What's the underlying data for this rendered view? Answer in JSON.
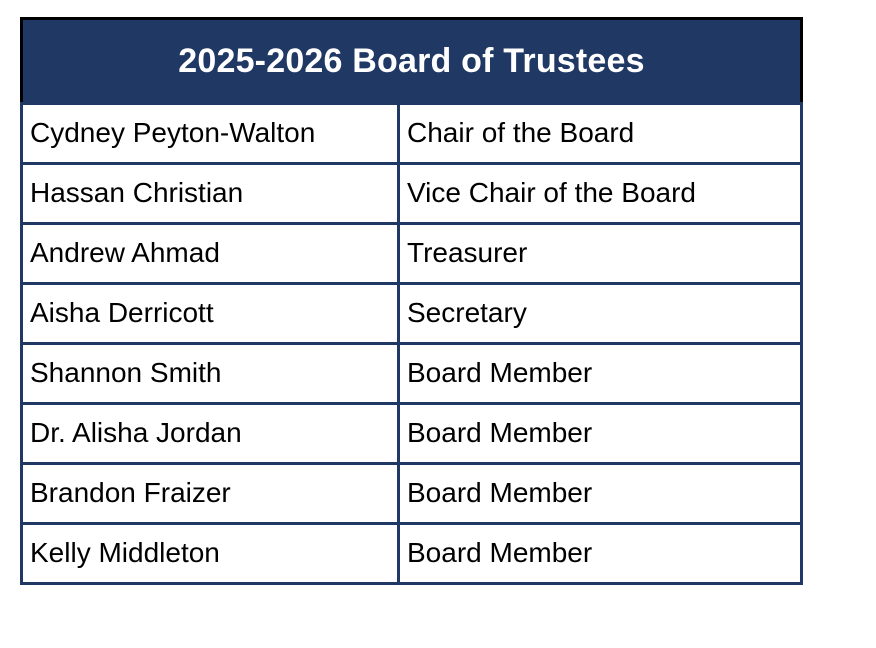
{
  "colors": {
    "header_background": "#1f3864",
    "header_text": "#ffffff",
    "header_outline": "#000000",
    "body_border": "#1f3864",
    "body_text": "#000000",
    "body_background": "#ffffff",
    "page_background": "#ffffff"
  },
  "table": {
    "title": "2025-2026 Board of Trustees",
    "rows": [
      {
        "name": "Cydney Peyton-Walton",
        "role": "Chair of the Board"
      },
      {
        "name": "Hassan Christian",
        "role": "Vice Chair of the Board"
      },
      {
        "name": "Andrew Ahmad",
        "role": "Treasurer"
      },
      {
        "name": "Aisha Derricott",
        "role": "Secretary"
      },
      {
        "name": "Shannon Smith",
        "role": "Board Member"
      },
      {
        "name": "Dr. Alisha Jordan",
        "role": "Board Member"
      },
      {
        "name": "Brandon Fraizer",
        "role": "Board Member"
      },
      {
        "name": "Kelly Middleton",
        "role": "Board Member"
      }
    ]
  }
}
